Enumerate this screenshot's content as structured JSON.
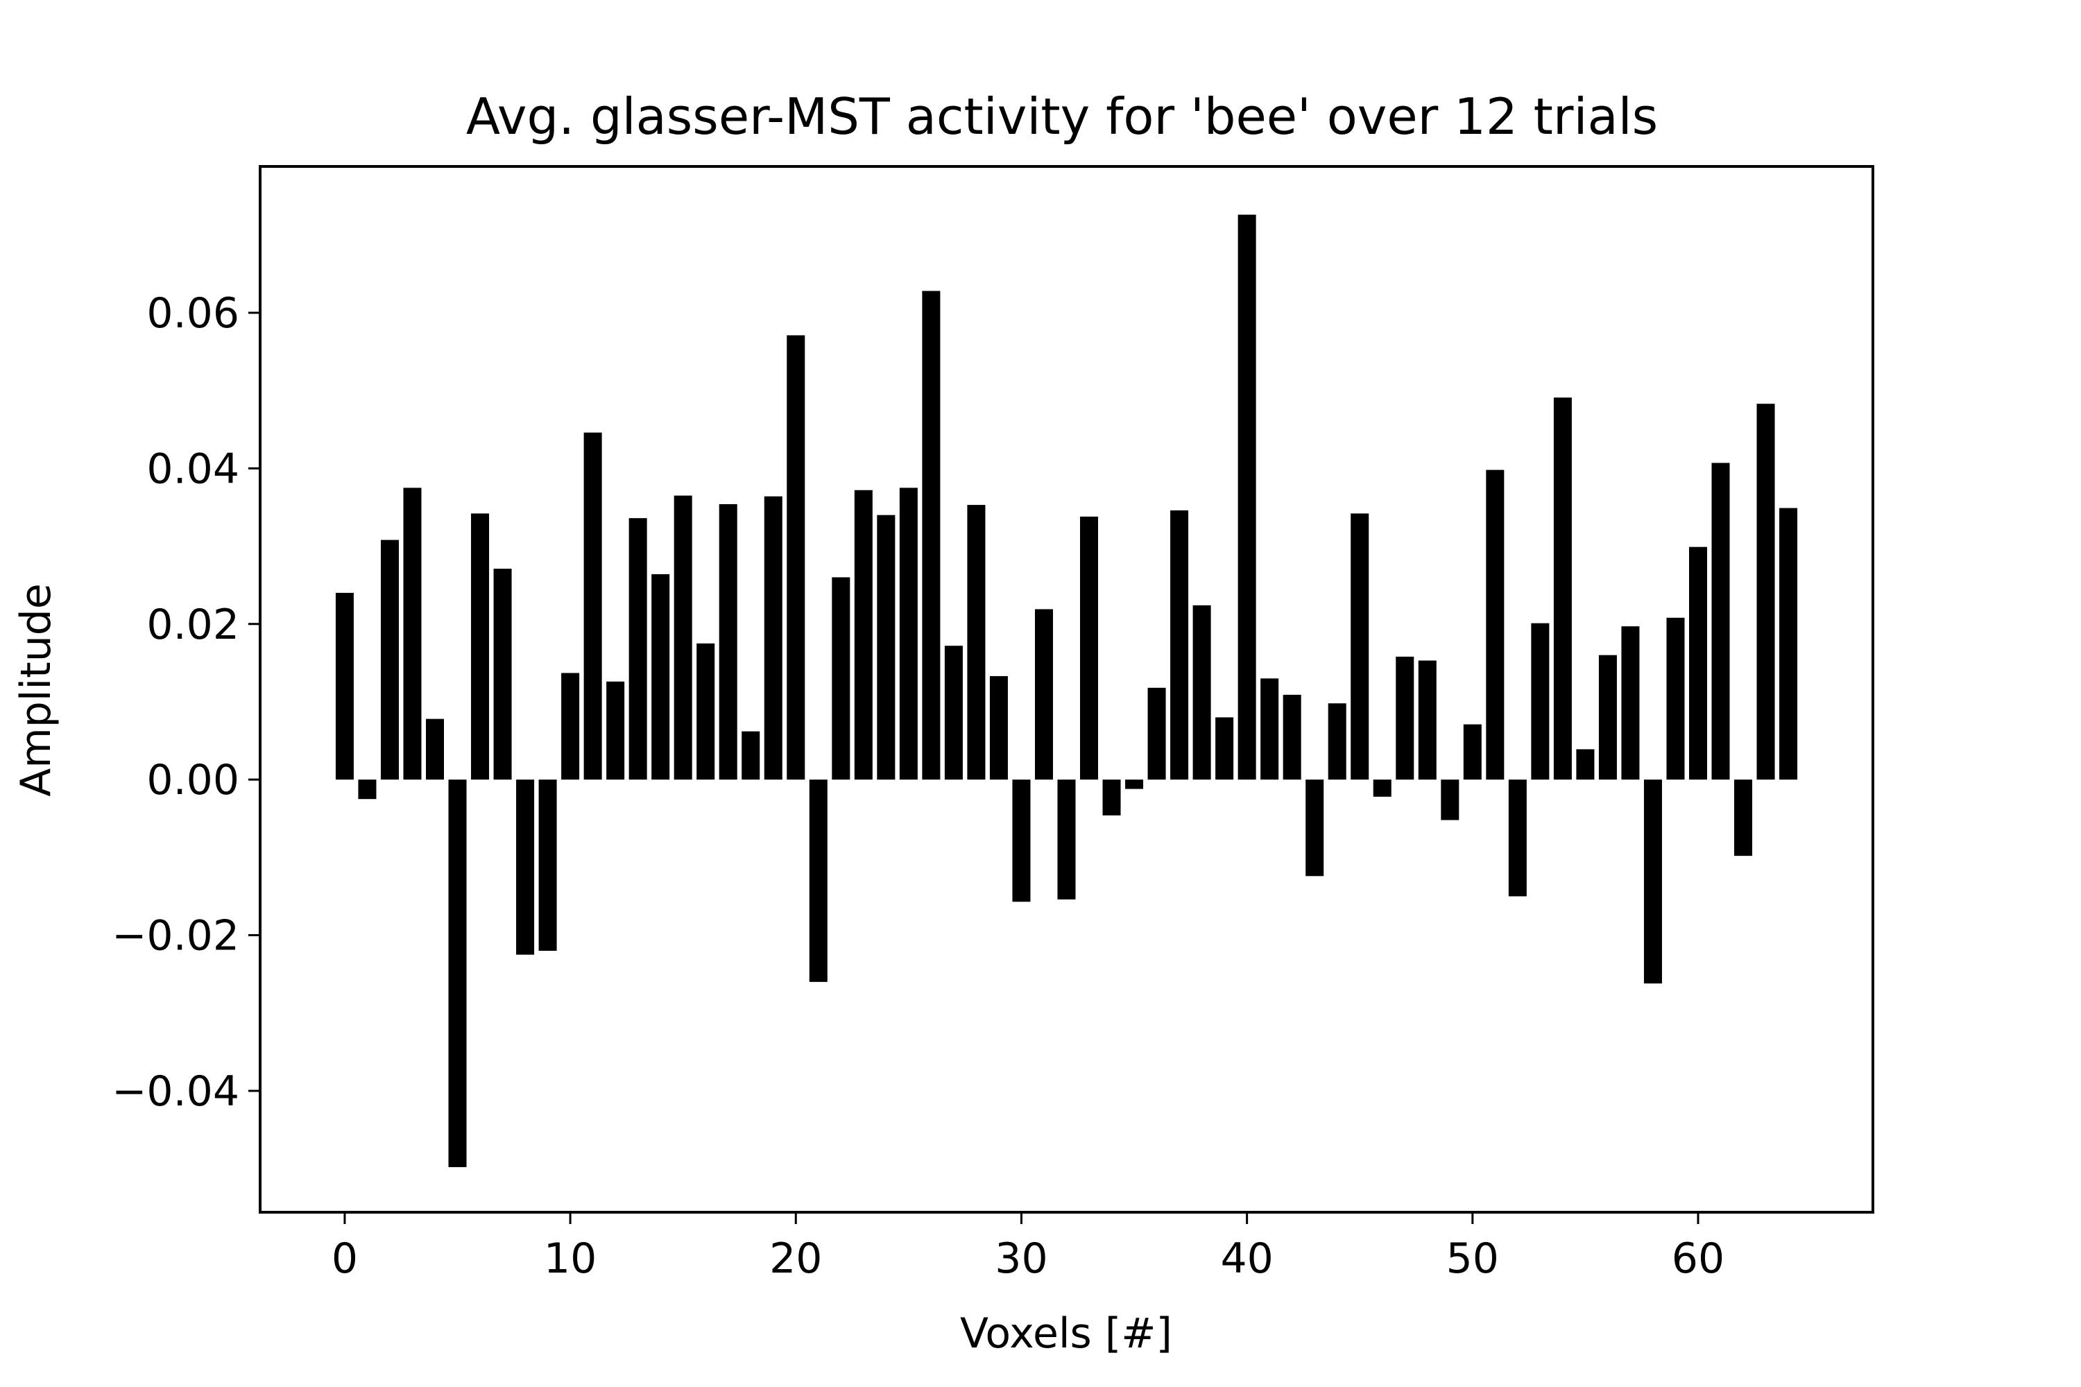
{
  "chart_data": {
    "type": "bar",
    "title": "Avg. glasser-MST activity for 'bee' over 12 trials",
    "xlabel": "Voxels [#]",
    "ylabel": "Amplitude",
    "xlim": [
      -3.75,
      67.75
    ],
    "ylim": [
      -0.0556,
      0.0788
    ],
    "xticks": [
      0,
      10,
      20,
      30,
      40,
      50,
      60
    ],
    "xtick_labels": [
      "0",
      "10",
      "20",
      "30",
      "40",
      "50",
      "60"
    ],
    "yticks": [
      -0.04,
      -0.02,
      0.0,
      0.02,
      0.04,
      0.06
    ],
    "ytick_labels": [
      "−0.04",
      "−0.02",
      "0.00",
      "0.02",
      "0.04",
      "0.06"
    ],
    "bar_color": "#000000",
    "grid": false,
    "x": [
      0,
      1,
      2,
      3,
      4,
      5,
      6,
      7,
      8,
      9,
      10,
      11,
      12,
      13,
      14,
      15,
      16,
      17,
      18,
      19,
      20,
      21,
      22,
      23,
      24,
      25,
      26,
      27,
      28,
      29,
      30,
      31,
      32,
      33,
      34,
      35,
      36,
      37,
      38,
      39,
      40,
      41,
      42,
      43,
      44,
      45,
      46,
      47,
      48,
      49,
      50,
      51,
      52,
      53,
      54,
      55,
      56,
      57,
      58,
      59,
      60,
      61,
      62,
      63,
      64
    ],
    "values": [
      0.024,
      -0.0025,
      0.0308,
      0.0375,
      0.0078,
      -0.0498,
      0.0342,
      0.0271,
      -0.0225,
      -0.022,
      0.0137,
      0.0446,
      0.0126,
      0.0336,
      0.0264,
      0.0365,
      0.0175,
      0.0354,
      0.0062,
      0.0364,
      0.0571,
      -0.026,
      0.026,
      0.0372,
      0.034,
      0.0375,
      0.0628,
      0.0172,
      0.0353,
      0.0133,
      -0.0157,
      0.0219,
      -0.0154,
      0.0338,
      -0.0046,
      -0.0012,
      0.0118,
      0.0346,
      0.0224,
      0.008,
      0.0726,
      0.013,
      0.0109,
      -0.0124,
      0.0098,
      0.0342,
      -0.0022,
      0.0158,
      0.0153,
      -0.0052,
      0.0071,
      0.0398,
      -0.015,
      0.0201,
      0.0491,
      0.0039,
      0.016,
      0.0197,
      -0.0262,
      0.0208,
      0.0299,
      0.0407,
      -0.0098,
      0.0483,
      0.0349
    ]
  }
}
